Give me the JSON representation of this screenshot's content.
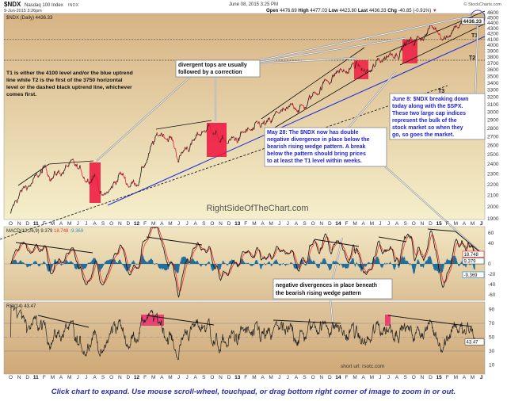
{
  "header": {
    "symbol": "$NDX",
    "name": "Nasdaq 100 Index",
    "exchange": "INDX",
    "date_small": "9-Jun-2015 3:26pm",
    "date_center": "June 08, 2015 3:25 PM",
    "copyright": "© StockCharts.com",
    "ohlc_label_open": "Open",
    "open": "4476.69",
    "ohlc_label_high": "High",
    "high": "4477.03",
    "ohlc_label_low": "Low",
    "low": "4423.80",
    "ohlc_label_last": "Last",
    "last": "4436.33",
    "ohlc_label_chg": "Chg",
    "chg": "-40.85 (-0.91%)",
    "chg_arrow": "▼"
  },
  "price_panel": {
    "legend": "$NDX (Daily) 4436.33",
    "last_value_tag": "4436.33",
    "watermark": "RightSideOfTheChart.com",
    "levels": {
      "T1": 4100,
      "T2": 3750
    },
    "level_labels": [
      "T1",
      "T2",
      "T3"
    ]
  },
  "macd_panel": {
    "legend_name": "MACD(12,26,9)",
    "macd": "9.379",
    "signal": "18.748",
    "hist": "-9.369",
    "tick_labels": [
      "60",
      "40",
      "0",
      "-20",
      "-40",
      "-60"
    ],
    "colors": {
      "macd": "#000000",
      "signal": "#e8302a",
      "hist": "#1f6e9c"
    }
  },
  "rsi_panel": {
    "legend": "RSI(14) 43.47",
    "value_tag": "43.47",
    "tick_labels": [
      "90",
      "70",
      "50",
      "30",
      "10"
    ],
    "short_url": "short url: rsotc.com"
  },
  "annotations": {
    "t_levels_note": [
      "T1 is either the 4100 level and/or the blue uptrend",
      "line while T2 is the first of the 3750 horizontal",
      "level or the dashed black uptrend line, whichever",
      "comes first."
    ],
    "divergent_tops": [
      "divergent tops are usually",
      "followed by a correction"
    ],
    "may28": [
      "May 28: The $NDX now has double",
      "negative divergence in place below the",
      "bearish rising wedge pattern. A break",
      "below the pattern should bring prices",
      "to at least the T1 level within weeks."
    ],
    "june8": [
      "June 8: $NDX breaking down",
      "today along with the $SPX.",
      "These two large cap indices",
      "represent the bulk of the",
      "stock market so when they",
      "go, so goes the market."
    ],
    "macd_note": [
      "negative divergences in place beneath",
      "the bearish rising wedge pattern"
    ]
  },
  "caption": "Click chart to expand. Use mouse scroll-wheel, touchpad, or drag bottom right corner of image to zoom in or out.",
  "chart_data": {
    "type": "line",
    "title": "$NDX Nasdaq 100 Index",
    "y_scale": "log",
    "ylim": [
      1900,
      4600
    ],
    "y_ticks": [
      1900,
      2000,
      2100,
      2200,
      2300,
      2400,
      2500,
      2600,
      2700,
      2800,
      2900,
      3000,
      3100,
      3200,
      3300,
      3400,
      3500,
      3600,
      3700,
      3800,
      3900,
      4000,
      4100,
      4200,
      4300,
      4400,
      4500,
      4600
    ],
    "x_tick_labels": [
      "O",
      "N",
      "D",
      "11",
      "F",
      "M",
      "A",
      "M",
      "J",
      "J",
      "A",
      "S",
      "O",
      "N",
      "D",
      "12",
      "F",
      "M",
      "A",
      "M",
      "J",
      "J",
      "A",
      "S",
      "O",
      "N",
      "D",
      "13",
      "F",
      "M",
      "A",
      "M",
      "J",
      "J",
      "A",
      "S",
      "O",
      "N",
      "D",
      "14",
      "F",
      "M",
      "A",
      "M",
      "J",
      "J",
      "A",
      "S",
      "O",
      "N",
      "D",
      "15",
      "F",
      "M",
      "A",
      "M",
      "J",
      "J"
    ],
    "x": [
      "2010-10",
      "2010-11",
      "2010-12",
      "2011-01",
      "2011-02",
      "2011-03",
      "2011-04",
      "2011-05",
      "2011-06",
      "2011-07",
      "2011-08",
      "2011-09",
      "2011-10",
      "2011-11",
      "2011-12",
      "2012-01",
      "2012-02",
      "2012-03",
      "2012-04",
      "2012-05",
      "2012-06",
      "2012-07",
      "2012-08",
      "2012-09",
      "2012-10",
      "2012-11",
      "2012-12",
      "2013-01",
      "2013-02",
      "2013-03",
      "2013-04",
      "2013-05",
      "2013-06",
      "2013-07",
      "2013-08",
      "2013-09",
      "2013-10",
      "2013-11",
      "2013-12",
      "2014-01",
      "2014-02",
      "2014-03",
      "2014-04",
      "2014-05",
      "2014-06",
      "2014-07",
      "2014-08",
      "2014-09",
      "2014-10",
      "2014-11",
      "2014-12",
      "2015-01",
      "2015-02",
      "2015-03",
      "2015-04",
      "2015-05",
      "2015-06-08"
    ],
    "close": [
      1930,
      2100,
      2180,
      2240,
      2330,
      2300,
      2330,
      2390,
      2310,
      2260,
      2350,
      2080,
      2150,
      2310,
      2210,
      2240,
      2420,
      2600,
      2740,
      2720,
      2460,
      2600,
      2650,
      2780,
      2820,
      2650,
      2630,
      2670,
      2740,
      2730,
      2810,
      2820,
      2990,
      2950,
      3080,
      3070,
      3220,
      3380,
      3490,
      3590,
      3560,
      3670,
      3560,
      3560,
      3730,
      3860,
      3940,
      4070,
      4040,
      4170,
      4320,
      4260,
      4200,
      4420,
      4360,
      4450,
      4436.33
    ],
    "indicators": [
      "MACD(12,26,9)",
      "RSI(14)"
    ],
    "grid": false
  }
}
